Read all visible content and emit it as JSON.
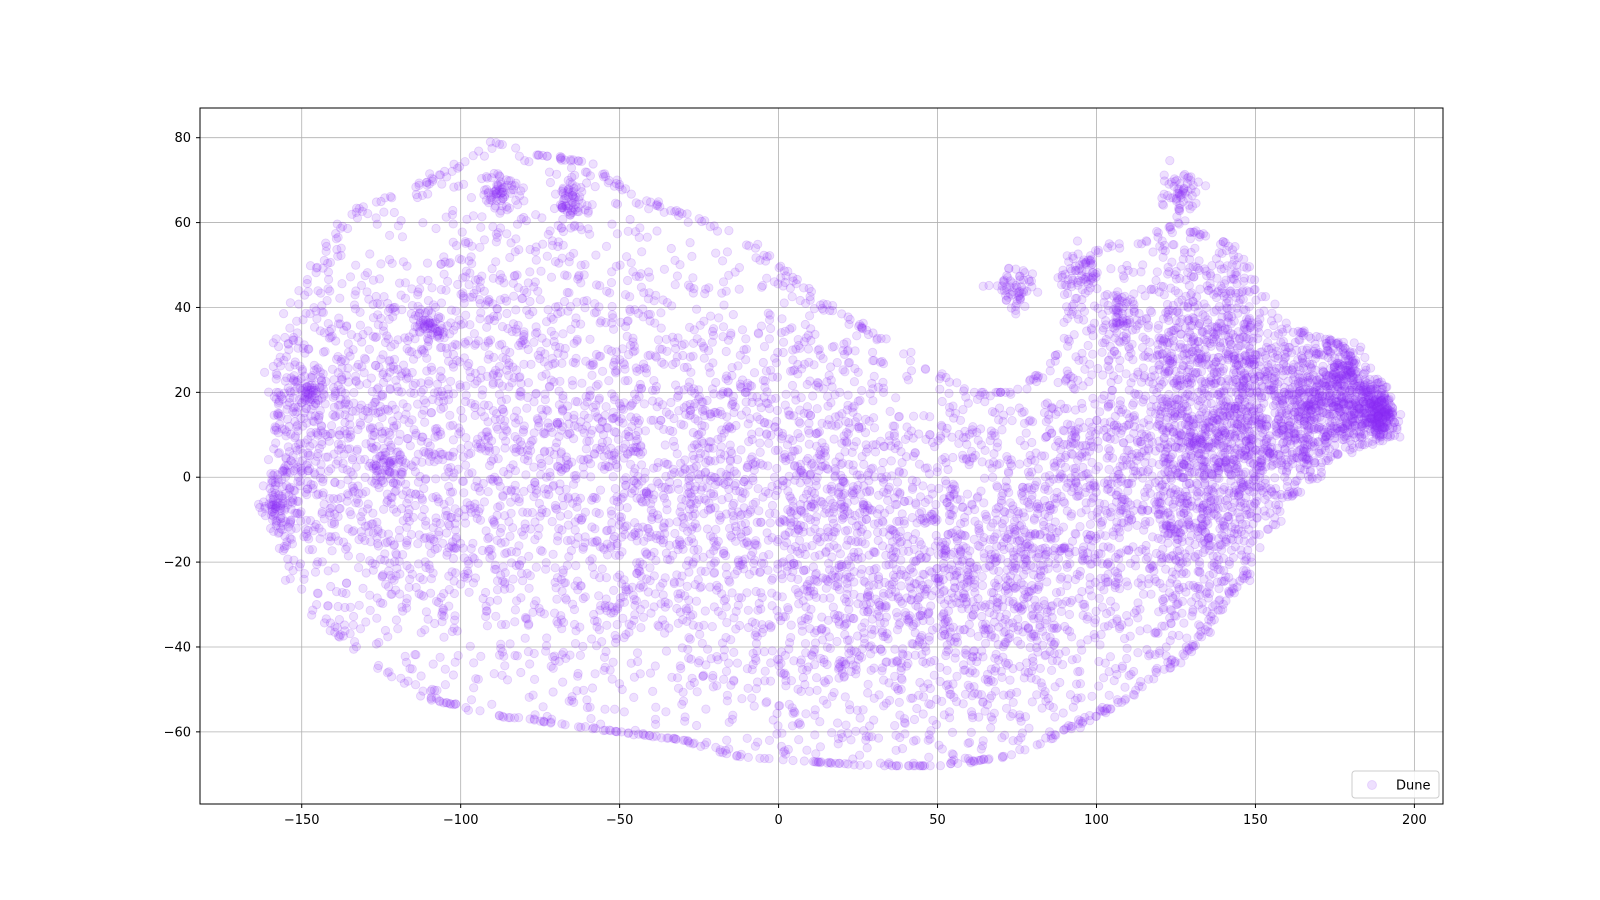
{
  "chart_data": {
    "type": "scatter",
    "title": "",
    "xlabel": "",
    "ylabel": "",
    "xlim": [
      -182,
      209
    ],
    "ylim": [
      -77,
      87
    ],
    "xticks": [
      -150,
      -100,
      -50,
      0,
      50,
      100,
      150,
      200
    ],
    "yticks": [
      -60,
      -40,
      -20,
      0,
      20,
      40,
      60,
      80
    ],
    "xtick_labels": [
      "−150",
      "−100",
      "−50",
      "0",
      "50",
      "100",
      "150",
      "200"
    ],
    "ytick_labels": [
      "−60",
      "−40",
      "−20",
      "0",
      "20",
      "40",
      "60",
      "80"
    ],
    "grid": true,
    "legend": "bottom-right",
    "series": [
      {
        "name": "Dune",
        "color": "#8b2ff5",
        "alpha": 0.15,
        "approx_point_count": 15000,
        "x_range": [
          -163,
          192
        ],
        "y_range": [
          -70,
          80
        ],
        "distribution": "dense crescent-shaped cloud: broad mass from x≈-160 to x≈140 centered around y≈0, wider on the left (y from -55 to 79), lower right body reaching y≈-70 near x≈50, upturned right lobe from x≈100 to x≈190 rising to y≈70 near x≈125",
        "notable_clusters": [
          {
            "x": -157,
            "y": -7
          },
          {
            "x": -148,
            "y": 20
          },
          {
            "x": -110,
            "y": 36
          },
          {
            "x": -122,
            "y": 3
          },
          {
            "x": -88,
            "y": 68
          },
          {
            "x": -65,
            "y": 65
          },
          {
            "x": 75,
            "y": 44
          },
          {
            "x": 95,
            "y": 48
          },
          {
            "x": 108,
            "y": 38
          },
          {
            "x": 126,
            "y": 67
          },
          {
            "x": 178,
            "y": 27
          },
          {
            "x": 190,
            "y": 13
          }
        ]
      }
    ]
  }
}
